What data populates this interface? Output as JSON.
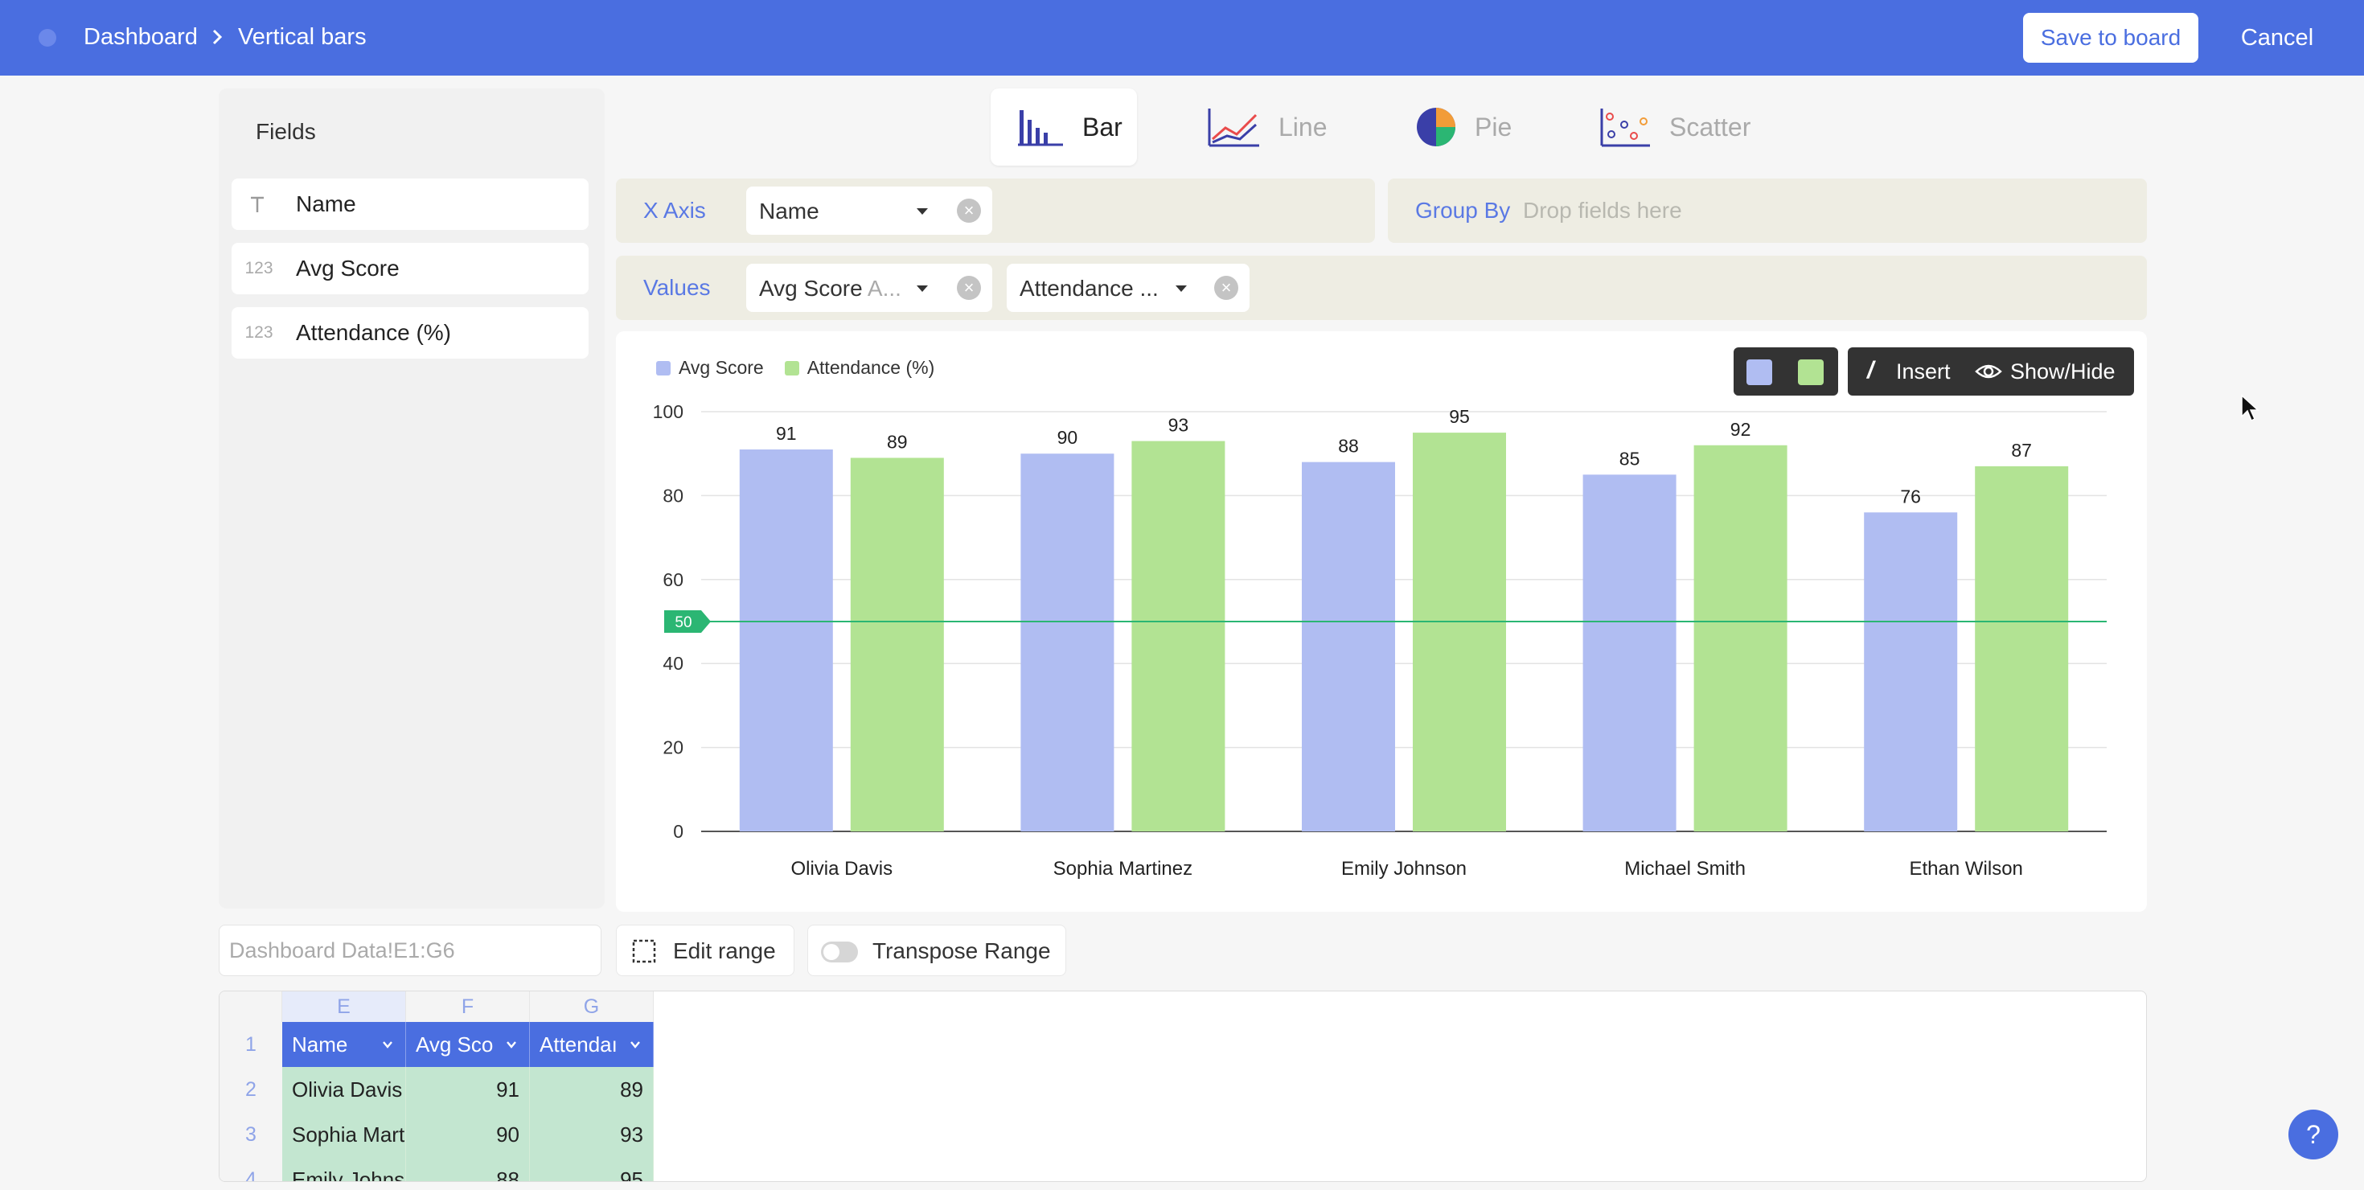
{
  "header": {
    "breadcrumb_root": "Dashboard",
    "breadcrumb_current": "Vertical bars",
    "save_label": "Save to board",
    "cancel_label": "Cancel"
  },
  "fields": {
    "title": "Fields",
    "items": [
      {
        "icon": "text-type-icon",
        "label": "Name"
      },
      {
        "icon": "number-type-icon",
        "icon_text": "123",
        "label": "Avg Score"
      },
      {
        "icon": "number-type-icon",
        "icon_text": "123",
        "label": "Attendance (%)"
      }
    ]
  },
  "chart_types": [
    {
      "label": "Bar",
      "icon": "bar-chart-icon",
      "active": true
    },
    {
      "label": "Line",
      "icon": "line-chart-icon",
      "active": false
    },
    {
      "label": "Pie",
      "icon": "pie-chart-icon",
      "active": false
    },
    {
      "label": "Scatter",
      "icon": "scatter-chart-icon",
      "active": false
    }
  ],
  "config": {
    "x_axis_label": "X Axis",
    "x_axis_field": "Name",
    "group_by_label": "Group By",
    "group_by_placeholder": "Drop fields here",
    "values_label": "Values",
    "value_fields": [
      {
        "text": "Avg Score",
        "suffix": "A..."
      },
      {
        "text": "Attendance ...",
        "suffix": ""
      }
    ]
  },
  "toolbar": {
    "insert_label": "Insert",
    "show_hide_label": "Show/Hide"
  },
  "colors": {
    "accent": "#4a6ee0",
    "series1": "#b0bdf2",
    "series2": "#b2e393",
    "reference_line": "#2bb673"
  },
  "chart_data": {
    "type": "bar",
    "categories": [
      "Olivia Davis",
      "Sophia Martinez",
      "Emily Johnson",
      "Michael Smith",
      "Ethan Wilson"
    ],
    "series": [
      {
        "name": "Avg Score",
        "values": [
          91,
          90,
          88,
          85,
          76
        ]
      },
      {
        "name": "Attendance (%)",
        "values": [
          89,
          93,
          95,
          92,
          87
        ]
      }
    ],
    "ylim": [
      0,
      100
    ],
    "yticks": [
      0,
      20,
      40,
      60,
      80,
      100
    ],
    "reference_line": {
      "value": 50,
      "label": "50"
    },
    "grid": true,
    "legend": "top-left",
    "data_labels": true
  },
  "range": {
    "reference": "Dashboard Data!E1:G6",
    "edit_label": "Edit range",
    "transpose_label": "Transpose Range"
  },
  "sheet": {
    "columns": [
      "E",
      "F",
      "G"
    ],
    "rows": [
      "1",
      "2",
      "3",
      "4"
    ],
    "headers": [
      "Name",
      "Avg Sco",
      "Attendaı"
    ],
    "data": [
      [
        "Olivia Davis",
        "91",
        "89"
      ],
      [
        "Sophia Mart",
        "90",
        "93"
      ],
      [
        "Emily Johns",
        "88",
        "95"
      ]
    ]
  },
  "help_label": "?"
}
